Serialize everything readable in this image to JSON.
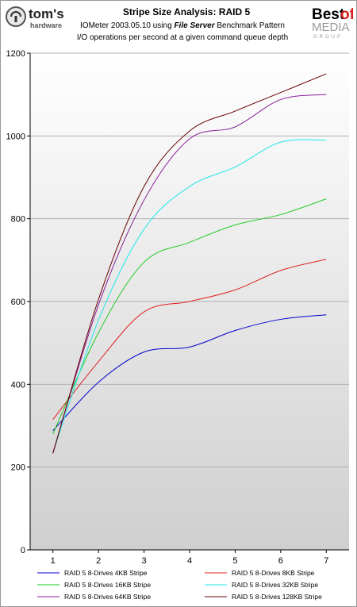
{
  "header": {
    "title": "Stripe Size Analysis: RAID 5",
    "subtitle_prefix": "IOMeter 2003.05.10 using ",
    "subtitle_emph": "File Server",
    "subtitle_suffix": " Benchmark Pattern",
    "subtitle2": "I/O operations per second at a given command queue depth"
  },
  "logos": {
    "left_text": "tom's",
    "left_sub": "hardware",
    "right_best": "Best",
    "right_of": "of",
    "right_media": "MEDIA",
    "right_group": "GROUP"
  },
  "colors": {
    "plot_bg_top": "#ffffff",
    "plot_bg_bottom": "#cfcfcf",
    "grid": "#b0b0b0",
    "right_logo_red": "#d81e1e"
  },
  "chart_data": {
    "type": "line",
    "x": [
      1,
      2,
      3,
      4,
      5,
      6,
      7
    ],
    "xlim": [
      0.5,
      7.5
    ],
    "ylim": [
      0,
      1200
    ],
    "yticks": [
      0,
      200,
      400,
      600,
      800,
      1000,
      1200
    ],
    "grid": true,
    "legend_placement": "bottom",
    "series": [
      {
        "name": "RAID 5 8-Drives 4KB Stripe",
        "color": "#0000cc",
        "values": [
          288,
          405,
          478,
          490,
          530,
          557,
          568
        ]
      },
      {
        "name": "RAID 5 8-Drives 8KB Stripe",
        "color": "#e02020",
        "values": [
          315,
          455,
          575,
          600,
          628,
          675,
          702
        ]
      },
      {
        "name": "RAID 5 8-Drives 16KB Stripe",
        "color": "#22cc22",
        "values": [
          280,
          525,
          695,
          743,
          785,
          810,
          848
        ]
      },
      {
        "name": "RAID 5 8-Drives 32KB Stripe",
        "color": "#22e8e8",
        "values": [
          235,
          555,
          775,
          878,
          925,
          985,
          990
        ]
      },
      {
        "name": "RAID 5 8-Drives 64KB Stripe",
        "color": "#882299",
        "values": [
          235,
          592,
          845,
          993,
          1022,
          1088,
          1100
        ]
      },
      {
        "name": "RAID 5 8-Drives 128KB Stripe",
        "color": "#660000",
        "values": [
          233,
          605,
          878,
          1012,
          1060,
          1105,
          1150
        ]
      }
    ]
  }
}
